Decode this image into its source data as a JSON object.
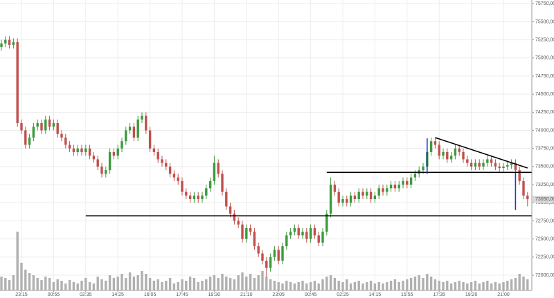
{
  "chart_data": {
    "type": "candlestick",
    "categories": [
      null,
      null,
      null,
      null,
      null,
      "23:15",
      null,
      null,
      null,
      null,
      null,
      null,
      null,
      "00:55",
      null,
      null,
      null,
      null,
      null,
      null,
      null,
      "02:35",
      null,
      null,
      null,
      null,
      null,
      null,
      null,
      "14:25",
      null,
      null,
      null,
      null,
      null,
      null,
      null,
      "16:05",
      null,
      null,
      null,
      null,
      null,
      null,
      null,
      "17:45",
      null,
      null,
      null,
      null,
      null,
      null,
      null,
      "19:30",
      null,
      null,
      null,
      null,
      null,
      null,
      null,
      "21:10",
      null,
      null,
      null,
      null,
      null,
      null,
      null,
      "23:05",
      null,
      null,
      null,
      null,
      null,
      null,
      null,
      "00:45",
      null,
      null,
      null,
      null,
      null,
      null,
      null,
      "02:25",
      null,
      null,
      null,
      null,
      null,
      null,
      null,
      "14:15",
      null,
      null,
      null,
      null,
      null,
      null,
      null,
      "15:55",
      null,
      null,
      null,
      null,
      null,
      null,
      null,
      "17:35",
      null,
      null,
      null,
      null,
      null,
      null,
      null,
      "19:20",
      null,
      null,
      null,
      null,
      null,
      null,
      null,
      "21:00",
      null,
      null,
      null,
      null,
      null,
      null
    ],
    "open": [
      75150,
      75200,
      75250,
      75180,
      75220,
      74100,
      74000,
      73800,
      73900,
      74050,
      74100,
      74000,
      74150,
      74050,
      74100,
      73950,
      73900,
      73800,
      73750,
      73700,
      73750,
      73700,
      73750,
      73650,
      73600,
      73500,
      73400,
      73450,
      73700,
      73650,
      73750,
      73850,
      74000,
      74050,
      73900,
      74150,
      74200,
      74000,
      73750,
      73700,
      73600,
      73550,
      73500,
      73400,
      73350,
      73300,
      73150,
      73100,
      73050,
      73100,
      73050,
      73100,
      73200,
      73300,
      73550,
      73400,
      73150,
      72950,
      72850,
      72750,
      72700,
      72500,
      72650,
      72600,
      72400,
      72300,
      72200,
      72100,
      72250,
      72350,
      72200,
      72400,
      72550,
      72600,
      72650,
      72550,
      72600,
      72500,
      72650,
      72550,
      72450,
      72600,
      72850,
      73250,
      73150,
      73000,
      73050,
      73000,
      73100,
      73050,
      73150,
      73100,
      73150,
      73050,
      73100,
      73200,
      73150,
      73200,
      73250,
      73200,
      73250,
      73300,
      73250,
      73350,
      73400,
      73450,
      73500,
      73700,
      73850,
      73800,
      73650,
      73700,
      73600,
      73650,
      73750,
      73700,
      73600,
      73550,
      73500,
      73550,
      73500,
      73550,
      73600,
      73550,
      73500,
      73480,
      73500,
      73520,
      73550,
      73450,
      73300,
      73100
    ],
    "high": [
      75250,
      75300,
      75300,
      75270,
      75270,
      74150,
      74050,
      73950,
      74100,
      74150,
      74150,
      74200,
      74200,
      74150,
      74150,
      74000,
      73950,
      73850,
      73800,
      73800,
      73800,
      73800,
      73800,
      73700,
      73650,
      73550,
      73500,
      73750,
      73750,
      73800,
      73900,
      74050,
      74100,
      74100,
      74200,
      74250,
      74250,
      74050,
      73800,
      73750,
      73650,
      73600,
      73550,
      73450,
      73400,
      73350,
      73200,
      73150,
      73150,
      73150,
      73150,
      73250,
      73350,
      73650,
      73600,
      73450,
      73200,
      73000,
      72900,
      72800,
      72750,
      72700,
      72700,
      72650,
      72450,
      72350,
      72250,
      72300,
      72400,
      72400,
      72450,
      72600,
      72650,
      72700,
      72700,
      72650,
      72650,
      72700,
      72700,
      72600,
      72650,
      72900,
      73350,
      73300,
      73200,
      73100,
      73100,
      73150,
      73150,
      73200,
      73200,
      73200,
      73200,
      73150,
      73250,
      73250,
      73250,
      73300,
      73300,
      73300,
      73350,
      73350,
      73400,
      73450,
      73500,
      73550,
      73750,
      73900,
      73900,
      73850,
      73750,
      73750,
      73700,
      73800,
      73800,
      73750,
      73650,
      73600,
      73600,
      73600,
      73600,
      73650,
      73650,
      73600,
      73550,
      73550,
      73570,
      73600,
      73600,
      73500,
      73350,
      73150
    ],
    "low": [
      75100,
      75150,
      75130,
      75130,
      74050,
      73950,
      73750,
      73750,
      73850,
      74000,
      73950,
      73950,
      74000,
      74000,
      73900,
      73850,
      73750,
      73700,
      73650,
      73650,
      73650,
      73650,
      73600,
      73550,
      73450,
      73350,
      73350,
      73400,
      73600,
      73600,
      73700,
      73800,
      73950,
      73850,
      73850,
      74100,
      73950,
      73700,
      73650,
      73550,
      73500,
      73450,
      73350,
      73300,
      73250,
      73100,
      73050,
      73000,
      73000,
      73000,
      73000,
      73050,
      73150,
      73250,
      73350,
      73100,
      72900,
      72800,
      72700,
      72650,
      72450,
      72450,
      72550,
      72350,
      72250,
      72150,
      71980,
      72050,
      72200,
      72150,
      72150,
      72350,
      72500,
      72550,
      72500,
      72500,
      72450,
      72450,
      72500,
      72400,
      72400,
      72550,
      72800,
      73100,
      72950,
      72950,
      72950,
      72950,
      73000,
      73000,
      73050,
      73050,
      73000,
      73000,
      73050,
      73100,
      73100,
      73150,
      73150,
      73150,
      73200,
      73200,
      73200,
      73300,
      73350,
      73400,
      73450,
      73650,
      73750,
      73600,
      73600,
      73550,
      73550,
      73600,
      73650,
      73550,
      73500,
      73450,
      73450,
      73450,
      73450,
      73500,
      73500,
      73450,
      73430,
      73430,
      73450,
      73470,
      73400,
      73250,
      73050,
      72950
    ],
    "close": [
      75200,
      75250,
      75180,
      75220,
      74100,
      74000,
      73800,
      73900,
      74050,
      74100,
      74000,
      74150,
      74050,
      74100,
      73950,
      73900,
      73800,
      73750,
      73700,
      73750,
      73700,
      73750,
      73650,
      73600,
      73500,
      73400,
      73450,
      73700,
      73650,
      73750,
      73850,
      74000,
      74050,
      73900,
      74150,
      74200,
      74000,
      73750,
      73700,
      73600,
      73550,
      73500,
      73400,
      73350,
      73300,
      73150,
      73100,
      73050,
      73100,
      73050,
      73100,
      73200,
      73300,
      73550,
      73400,
      73150,
      72950,
      72850,
      72750,
      72700,
      72500,
      72650,
      72600,
      72400,
      72300,
      72200,
      72100,
      72250,
      72350,
      72200,
      72400,
      72550,
      72600,
      72650,
      72550,
      72600,
      72500,
      72650,
      72550,
      72450,
      72600,
      72850,
      73250,
      73150,
      73000,
      73050,
      73000,
      73100,
      73050,
      73150,
      73100,
      73150,
      73050,
      73100,
      73200,
      73150,
      73200,
      73250,
      73200,
      73250,
      73300,
      73250,
      73350,
      73400,
      73450,
      73500,
      73700,
      73850,
      73800,
      73650,
      73700,
      73600,
      73650,
      73750,
      73700,
      73600,
      73550,
      73500,
      73550,
      73500,
      73550,
      73600,
      73550,
      73500,
      73480,
      73500,
      73520,
      73550,
      73450,
      73300,
      73100,
      73050
    ],
    "volume": [
      20,
      18,
      15,
      22,
      85,
      40,
      30,
      25,
      22,
      18,
      15,
      20,
      18,
      12,
      16,
      14,
      10,
      15,
      12,
      10,
      14,
      18,
      12,
      10,
      20,
      16,
      14,
      22,
      18,
      20,
      24,
      18,
      26,
      20,
      22,
      28,
      24,
      18,
      14,
      16,
      12,
      14,
      18,
      10,
      12,
      16,
      14,
      20,
      18,
      12,
      14,
      16,
      20,
      22,
      18,
      24,
      20,
      18,
      16,
      22,
      26,
      20,
      24,
      18,
      22,
      28,
      20,
      16,
      14,
      12,
      10,
      14,
      12,
      10,
      12,
      14,
      10,
      12,
      14,
      10,
      16,
      20,
      22,
      18,
      14,
      12,
      16,
      10,
      12,
      14,
      10,
      12,
      14,
      10,
      12,
      10,
      12,
      14,
      16,
      12,
      14,
      16,
      18,
      20,
      22,
      18,
      24,
      20,
      16,
      14,
      12,
      14,
      10,
      12,
      14,
      12,
      10,
      12,
      14,
      10,
      12,
      14,
      10,
      12,
      10,
      12,
      14,
      16,
      18,
      24,
      20,
      16
    ],
    "up_color": "#3c9a3c",
    "down_color": "#c0504d",
    "volume_color": "#b0b0b0",
    "ylim": [
      71790,
      75800
    ],
    "yticks": [
      {
        "value": 72000,
        "label": "72000,00"
      },
      {
        "value": 72250,
        "label": "72250,00"
      },
      {
        "value": 72500,
        "label": "72500,00"
      },
      {
        "value": 72750,
        "label": "72750,00"
      },
      {
        "value": 73000,
        "label": "73000,00"
      },
      {
        "value": 73250,
        "label": "73250,00"
      },
      {
        "value": 73500,
        "label": "73500,00"
      },
      {
        "value": 73750,
        "label": "73750,00"
      },
      {
        "value": 74000,
        "label": "74000,00"
      },
      {
        "value": 74250,
        "label": "74250,00"
      },
      {
        "value": 74500,
        "label": "74500,00"
      },
      {
        "value": 74750,
        "label": "74750,00"
      },
      {
        "value": 75000,
        "label": "75000,00"
      },
      {
        "value": 75250,
        "label": "75250,00"
      },
      {
        "value": 75500,
        "label": "75500,00"
      },
      {
        "value": 75750,
        "label": "75750,00"
      }
    ],
    "grid": true,
    "last_price": {
      "value": 73050,
      "label": "73050,00"
    },
    "annotations": [
      {
        "x": [
          21,
          132
        ],
        "y": [
          72820,
          72820
        ],
        "color": "#000000"
      },
      {
        "x": [
          81,
          132
        ],
        "y": [
          73420,
          73420
        ],
        "color": "#000000"
      },
      {
        "x": [
          108,
          131
        ],
        "y": [
          73900,
          73480
        ],
        "color": "#000000"
      },
      {
        "x": [
          106,
          106
        ],
        "y": [
          73400,
          73890
        ],
        "color": "#2233dd"
      },
      {
        "x": [
          128,
          128
        ],
        "y": [
          73410,
          72900
        ],
        "color": "#2233dd"
      }
    ]
  }
}
